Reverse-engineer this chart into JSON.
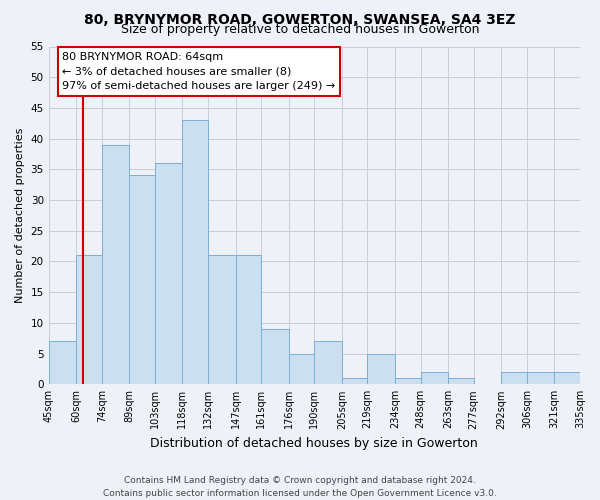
{
  "title": "80, BRYNYMOR ROAD, GOWERTON, SWANSEA, SA4 3EZ",
  "subtitle": "Size of property relative to detached houses in Gowerton",
  "xlabel": "Distribution of detached houses by size in Gowerton",
  "ylabel": "Number of detached properties",
  "bin_edges": [
    45,
    60,
    74,
    89,
    103,
    118,
    132,
    147,
    161,
    176,
    190,
    205,
    219,
    234,
    248,
    263,
    277,
    292,
    306,
    321,
    335
  ],
  "bin_counts": [
    7,
    21,
    39,
    34,
    36,
    43,
    21,
    21,
    9,
    5,
    7,
    1,
    5,
    1,
    2,
    1,
    0,
    2,
    2,
    2
  ],
  "bar_color": "#ccdff0",
  "bar_edge_color": "#7aafd4",
  "vline_x": 64,
  "vline_color": "#cc0000",
  "ylim": [
    0,
    55
  ],
  "yticks": [
    0,
    5,
    10,
    15,
    20,
    25,
    30,
    35,
    40,
    45,
    50,
    55
  ],
  "annotation_text": "80 BRYNYMOR ROAD: 64sqm\n← 3% of detached houses are smaller (8)\n97% of semi-detached houses are larger (249) →",
  "annotation_box_color": "#ffffff",
  "annotation_box_edgecolor": "#cc0000",
  "footer_line1": "Contains HM Land Registry data © Crown copyright and database right 2024.",
  "footer_line2": "Contains public sector information licensed under the Open Government Licence v3.0.",
  "tick_labels": [
    "45sqm",
    "60sqm",
    "74sqm",
    "89sqm",
    "103sqm",
    "118sqm",
    "132sqm",
    "147sqm",
    "161sqm",
    "176sqm",
    "190sqm",
    "205sqm",
    "219sqm",
    "234sqm",
    "248sqm",
    "263sqm",
    "277sqm",
    "292sqm",
    "306sqm",
    "321sqm",
    "335sqm"
  ],
  "background_color": "#eef2f8",
  "grid_color": "#c8cdd8",
  "title_fontsize": 10,
  "subtitle_fontsize": 9,
  "ylabel_fontsize": 8,
  "xlabel_fontsize": 9,
  "tick_fontsize": 7,
  "annotation_fontsize": 8,
  "footer_fontsize": 6.5
}
